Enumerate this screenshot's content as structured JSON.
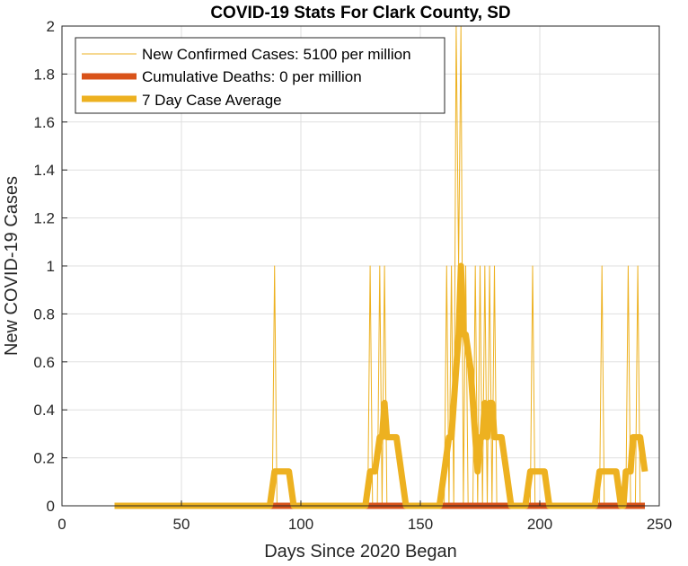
{
  "chart_data": {
    "type": "line",
    "title": "COVID-19 Stats For Clark County, SD",
    "xlabel": "Days Since 2020 Began",
    "ylabel": "New COVID-19 Cases",
    "xlim": [
      0,
      250
    ],
    "ylim": [
      0,
      2
    ],
    "xticks": [
      0,
      50,
      100,
      150,
      200,
      250
    ],
    "yticks": [
      0,
      0.2,
      0.4,
      0.6,
      0.8,
      1,
      1.2,
      1.4,
      1.6,
      1.8,
      2
    ],
    "xtick_labels": [
      "0",
      "50",
      "100",
      "150",
      "200",
      "250"
    ],
    "ytick_labels": [
      "0",
      "0.2",
      "0.4",
      "0.6",
      "0.8",
      "1",
      "1.2",
      "1.4",
      "1.6",
      "1.8",
      "2"
    ],
    "grid": true,
    "legend_position": "top-left",
    "series": [
      {
        "name": "New Confirmed Cases: 5100 per million",
        "color": "#EDB120",
        "style": "thin",
        "x": [
          22,
          88,
          89,
          90,
          128,
          129,
          130,
          132,
          133,
          134,
          135,
          136,
          160,
          161,
          162,
          163,
          164,
          165,
          166,
          167,
          168,
          169,
          170,
          172,
          173,
          174,
          175,
          176,
          177,
          178,
          179,
          180,
          181,
          182,
          183,
          196,
          197,
          198,
          225,
          226,
          227,
          236,
          237,
          238,
          240,
          241,
          242,
          244
        ],
        "y": [
          0,
          0,
          1,
          0,
          0,
          1,
          0,
          0,
          1,
          0,
          1,
          0,
          0,
          1,
          0,
          1,
          0,
          2,
          1,
          2,
          0,
          1,
          0,
          0,
          1,
          0,
          1,
          0,
          1,
          0,
          1,
          0,
          1,
          0,
          0,
          0,
          1,
          0,
          0,
          1,
          0,
          0,
          1,
          0,
          0,
          1,
          0,
          0
        ]
      },
      {
        "name": "Cumulative Deaths: 0 per million",
        "color": "#D95319",
        "style": "thick",
        "x": [
          22,
          244
        ],
        "y": [
          0,
          0
        ]
      },
      {
        "name": "7 Day Case Average",
        "color": "#EDB120",
        "style": "thick",
        "x": [
          22,
          87,
          89,
          95,
          97,
          127,
          129,
          131,
          133,
          134,
          135,
          136,
          137,
          140,
          142,
          144,
          158,
          160,
          162,
          163,
          165,
          166,
          167,
          168,
          169,
          171,
          173,
          174,
          175,
          176,
          177,
          178,
          179,
          180,
          181,
          182,
          184,
          186,
          188,
          194,
          196,
          202,
          204,
          223,
          225,
          232,
          234,
          235,
          236,
          238,
          239,
          240,
          241,
          242,
          244
        ],
        "y": [
          0,
          0,
          0.143,
          0.143,
          0,
          0,
          0.143,
          0.143,
          0.286,
          0.286,
          0.429,
          0.286,
          0.286,
          0.286,
          0.143,
          0,
          0,
          0.143,
          0.286,
          0.286,
          0.571,
          0.714,
          1.0,
          0.714,
          0.714,
          0.571,
          0.286,
          0.143,
          0.286,
          0.286,
          0.429,
          0.286,
          0.429,
          0.429,
          0.286,
          0.286,
          0.286,
          0.143,
          0,
          0,
          0.143,
          0.143,
          0,
          0,
          0.143,
          0.143,
          0,
          0,
          0.143,
          0.143,
          0.286,
          0.286,
          0.286,
          0.286,
          0.143
        ]
      }
    ]
  }
}
